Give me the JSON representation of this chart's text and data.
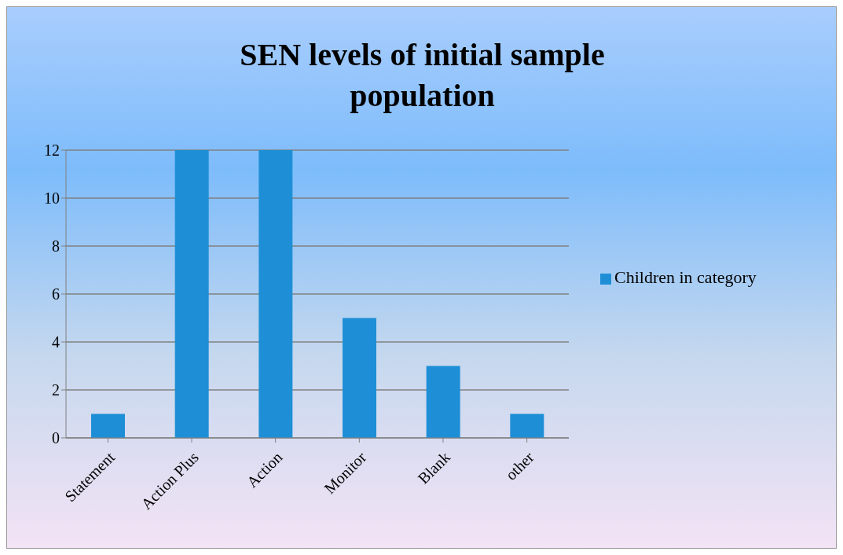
{
  "chart_data": {
    "type": "bar",
    "title": "SEN levels of initial sample population",
    "categories": [
      "Statement",
      "Action Plus",
      "Action",
      "Monitor",
      "Blank",
      "other"
    ],
    "series": [
      {
        "name": "Children in category",
        "color": "#1e8fd6",
        "values": [
          1,
          12,
          12,
          5,
          3,
          1
        ]
      }
    ],
    "ylim": [
      0,
      12
    ],
    "yticks": [
      0,
      2,
      4,
      6,
      8,
      10,
      12
    ],
    "grid": "y",
    "legend": "right"
  }
}
